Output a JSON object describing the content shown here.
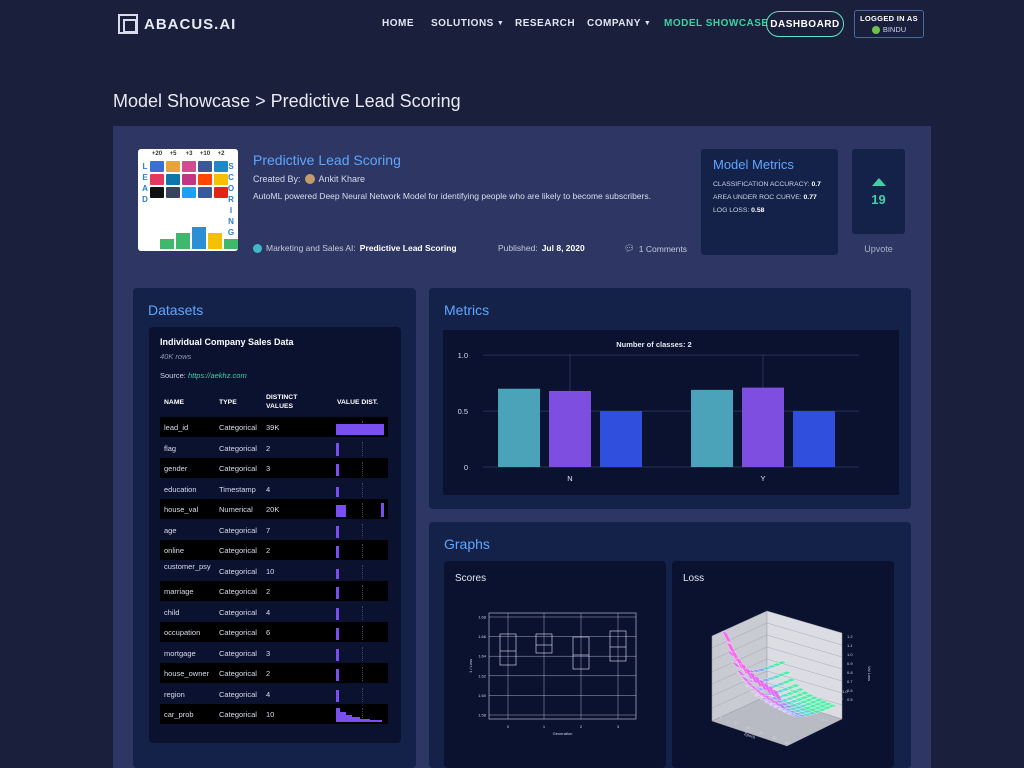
{
  "nav": {
    "logo_text": "ABACUS.AI",
    "links": [
      "HOME",
      "SOLUTIONS",
      "RESEARCH",
      "COMPANY",
      "MODEL SHOWCASE"
    ],
    "dashboard": "DASHBOARD",
    "logged_in_label": "LOGGED IN AS",
    "user": "BINDU"
  },
  "breadcrumb": "Model Showcase > Predictive Lead Scoring",
  "model": {
    "title": "Predictive Lead Scoring",
    "created_by_label": "Created By:",
    "author": "Ankit Khare",
    "description": "AutoML powered Deep Neural Network Model for identifying people who are likely to become subscribers.",
    "category_label": "Marketing and Sales AI:",
    "category_value": "Predictive Lead Scoring",
    "published_label": "Published:",
    "published_date": "Jul 8, 2020",
    "comments": "1 Comments",
    "hero_counts": [
      "+20",
      "+5",
      "+3",
      "+10",
      "+2"
    ],
    "hero_left": [
      "L",
      "E",
      "A",
      "D"
    ],
    "hero_right": [
      "S",
      "C",
      "O",
      "R",
      "I",
      "N",
      "G"
    ]
  },
  "model_metrics": {
    "title": "Model Metrics",
    "items": [
      {
        "label": "CLASSIFICATION ACCURACY:",
        "value": "0.7"
      },
      {
        "label": "AREA UNDER ROC CURVE:",
        "value": "0.77"
      },
      {
        "label": "LOG LOSS:",
        "value": "0.58"
      }
    ]
  },
  "upvote": {
    "count": "19",
    "label": "Upvote"
  },
  "datasets": {
    "title": "Datasets",
    "name": "Individual Company Sales Data",
    "rows": "40K rows",
    "source_label": "Source:",
    "source_url": "https://aekhz.com",
    "columns": [
      "NAME",
      "TYPE",
      "DISTINCT VALUES",
      "VALUE DIST."
    ],
    "table": [
      {
        "name": "lead_id",
        "type": "Categorical",
        "distinct": "39K"
      },
      {
        "name": "flag",
        "type": "Categorical",
        "distinct": "2"
      },
      {
        "name": "gender",
        "type": "Categorical",
        "distinct": "3"
      },
      {
        "name": "education",
        "type": "Timestamp",
        "distinct": "4"
      },
      {
        "name": "house_val",
        "type": "Numerical",
        "distinct": "20K"
      },
      {
        "name": "age",
        "type": "Categorical",
        "distinct": "7"
      },
      {
        "name": "online",
        "type": "Categorical",
        "distinct": "2"
      },
      {
        "name": "customer_psy",
        "type": "Categorical",
        "distinct": "10"
      },
      {
        "name": "marriage",
        "type": "Categorical",
        "distinct": "2"
      },
      {
        "name": "child",
        "type": "Categorical",
        "distinct": "4"
      },
      {
        "name": "occupation",
        "type": "Categorical",
        "distinct": "6"
      },
      {
        "name": "mortgage",
        "type": "Categorical",
        "distinct": "3"
      },
      {
        "name": "house_owner",
        "type": "Categorical",
        "distinct": "2"
      },
      {
        "name": "region",
        "type": "Categorical",
        "distinct": "4"
      },
      {
        "name": "car_prob",
        "type": "Categorical",
        "distinct": "10"
      }
    ]
  },
  "metrics": {
    "title": "Metrics"
  },
  "graphs": {
    "title": "Graphs",
    "scores_title": "Scores",
    "loss_title": "Loss"
  },
  "chart_data": [
    {
      "type": "bar",
      "title": "Number of classes: 2",
      "categories": [
        "N",
        "Y"
      ],
      "series": [
        {
          "values": [
            0.7,
            0.69
          ],
          "color": "#4aa3b9"
        },
        {
          "values": [
            0.68,
            0.71
          ],
          "color": "#7d4ee0"
        },
        {
          "values": [
            0.5,
            0.5
          ],
          "color": "#2f4fdc"
        }
      ],
      "ylim": [
        0,
        1.1
      ],
      "yticks": [
        "0",
        "0.5",
        "1.0"
      ]
    },
    {
      "type": "box",
      "x": [
        "0",
        "1",
        "2",
        "3"
      ],
      "yticks": [
        "1.58",
        "1.60",
        "1.62",
        "1.64",
        "1.66",
        "1.68"
      ],
      "xlabel": "Generation",
      "ylabel": "1 / Loss"
    },
    {
      "type": "surface",
      "x_ticks": [
        "0",
        "10",
        "20",
        "30",
        "40",
        "50"
      ],
      "xlabel": "Epoch",
      "z_ticks": [
        "0.5",
        "0.6",
        "0.7",
        "0.8",
        "0.9",
        "1.0",
        "1.1",
        "1.2"
      ],
      "zlabel": "Val Loss",
      "y_ticks": [
        "0.2",
        "0.4",
        "0.6",
        "0.8",
        "1.0"
      ]
    }
  ]
}
